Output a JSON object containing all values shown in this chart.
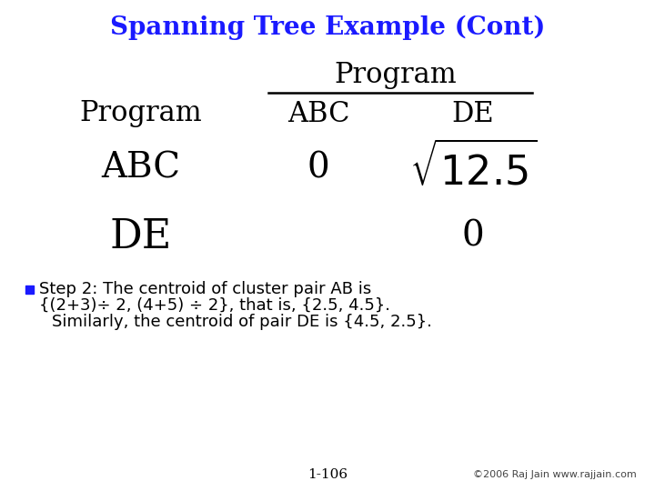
{
  "title": "Spanning Tree Example (Cont)",
  "title_color": "#1a1aff",
  "title_fontsize": 20,
  "background_color": "#ffffff",
  "table_header_program": "Program",
  "table_col1": "ABC",
  "table_col2": "DE",
  "table_row1": "Program",
  "table_row2": "ABC",
  "table_row3": "DE",
  "cell_abc_abc": "0",
  "cell_de_de": "0",
  "bullet_text_line1": "Step 2: The centroid of cluster pair AB is",
  "bullet_text_line2": "{(2+3)÷ 2, (4+5) ÷ 2}, that is, {2.5, 4.5}.",
  "bullet_text_line3": "Similarly, the centroid of pair DE is {4.5, 2.5}.",
  "bullet_color": "#1a1aff",
  "text_color": "#000000",
  "footer_right": "©2006 Raj Jain www.rajjain.com",
  "footer_center": "1-106",
  "footer_fontsize": 8,
  "main_fontsize": 13,
  "table_fontsize_large": 28,
  "table_fontsize_medium": 22,
  "table_fontsize_small": 18
}
